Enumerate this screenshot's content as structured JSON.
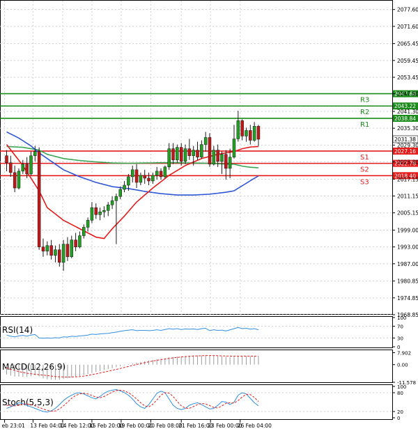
{
  "chart_data": {
    "type": "candlestick",
    "main": {
      "y_ticks": [
        "2077.60",
        "2071.60",
        "2065.45",
        "2059.45",
        "2053.45",
        "2047.60",
        "2041.30",
        "2035.30",
        "2029.30",
        "2023.30",
        "2017.15",
        "2011.15",
        "2005.15",
        "1999.00",
        "1993.00",
        "1987.00",
        "1980.85",
        "1974.85",
        "1968.85"
      ],
      "ylim": [
        1968.85,
        2080.0
      ],
      "price_label": "2031.38",
      "price_value": 2031.38,
      "levels": [
        {
          "name": "R3",
          "value": 2047.6,
          "label": "2047.60",
          "color": "#1a8a1a"
        },
        {
          "name": "R2",
          "value": 2043.22,
          "label": "2043.22",
          "color": "#1a8a1a"
        },
        {
          "name": "R1",
          "value": 2038.84,
          "label": "2038.84",
          "color": "#1a8a1a"
        },
        {
          "name": "S1",
          "value": 2027.16,
          "label": "2027.16",
          "color": "#e31b1b"
        },
        {
          "name": "S2",
          "value": 2022.78,
          "label": "2022.78",
          "color": "#e31b1b"
        },
        {
          "name": "S3",
          "value": 2018.4,
          "label": "2018.40",
          "color": "#e31b1b"
        }
      ],
      "candles": [
        [
          2025.5,
          2027.5,
          2020.0,
          2023.0
        ],
        [
          2023.0,
          2025.5,
          2018.0,
          2019.5
        ],
        [
          2019.5,
          2022.0,
          2012.5,
          2014.0
        ],
        [
          2014.0,
          2021.0,
          2013.5,
          2020.0
        ],
        [
          2020.0,
          2024.0,
          2019.0,
          2022.5
        ],
        [
          2022.5,
          2025.0,
          2017.5,
          2019.0
        ],
        [
          2019.0,
          2027.0,
          2018.5,
          2025.5
        ],
        [
          2025.5,
          2029.0,
          2023.5,
          2027.0
        ],
        [
          2027.0,
          2028.5,
          1992.0,
          1993.0
        ],
        [
          1993.0,
          1996.0,
          1989.5,
          1991.5
        ],
        [
          1991.5,
          1995.0,
          1990.0,
          1993.5
        ],
        [
          1993.5,
          1995.5,
          1988.5,
          1990.0
        ],
        [
          1990.0,
          1993.5,
          1987.5,
          1992.0
        ],
        [
          1992.0,
          1994.0,
          1986.0,
          1987.5
        ],
        [
          1987.5,
          1995.5,
          1984.5,
          1994.0
        ],
        [
          1994.0,
          1996.5,
          1988.0,
          1989.5
        ],
        [
          1989.5,
          1997.0,
          1989.0,
          1995.5
        ],
        [
          1995.5,
          1998.0,
          1991.5,
          1993.0
        ],
        [
          1993.0,
          1998.5,
          1992.5,
          1997.0
        ],
        [
          1997.0,
          2001.0,
          1996.0,
          2000.0
        ],
        [
          2000.0,
          2003.5,
          1998.5,
          2002.5
        ],
        [
          2002.5,
          2009.0,
          2001.5,
          2007.0
        ],
        [
          2007.0,
          2008.5,
          2003.0,
          2004.5
        ],
        [
          2004.5,
          2007.0,
          2002.5,
          2005.5
        ],
        [
          2005.5,
          2007.5,
          2003.5,
          2006.0
        ],
        [
          2006.0,
          2009.0,
          2004.0,
          2008.0
        ],
        [
          2008.0,
          2011.0,
          2006.5,
          2009.5
        ],
        [
          2009.5,
          2012.0,
          1994.0,
          2011.0
        ],
        [
          2011.0,
          2014.5,
          2010.0,
          2013.5
        ],
        [
          2013.5,
          2016.5,
          2012.5,
          2015.0
        ],
        [
          2015.0,
          2019.0,
          2013.0,
          2018.0
        ],
        [
          2018.0,
          2022.0,
          2016.0,
          2020.5
        ],
        [
          2020.5,
          2022.5,
          2014.0,
          2016.0
        ],
        [
          2016.0,
          2019.5,
          2015.0,
          2018.5
        ],
        [
          2018.5,
          2020.5,
          2015.5,
          2017.5
        ],
        [
          2017.5,
          2019.5,
          2015.0,
          2016.5
        ],
        [
          2016.5,
          2019.5,
          2015.5,
          2018.5
        ],
        [
          2018.5,
          2021.5,
          2017.0,
          2020.0
        ],
        [
          2020.0,
          2021.0,
          2017.0,
          2018.0
        ],
        [
          2018.0,
          2022.0,
          2017.5,
          2021.5
        ],
        [
          2021.5,
          2030.0,
          2020.5,
          2028.0
        ],
        [
          2028.0,
          2030.0,
          2022.5,
          2024.0
        ],
        [
          2024.0,
          2029.5,
          2023.0,
          2028.5
        ],
        [
          2028.5,
          2030.0,
          2022.0,
          2023.5
        ],
        [
          2023.5,
          2029.5,
          2022.5,
          2028.0
        ],
        [
          2028.0,
          2031.5,
          2024.0,
          2025.5
        ],
        [
          2025.5,
          2029.0,
          2022.0,
          2027.5
        ],
        [
          2027.5,
          2030.5,
          2024.0,
          2025.0
        ],
        [
          2025.0,
          2031.0,
          2024.5,
          2029.5
        ],
        [
          2029.5,
          2034.0,
          2027.0,
          2032.0
        ],
        [
          2032.0,
          2033.5,
          2021.5,
          2022.5
        ],
        [
          2022.5,
          2029.0,
          2022.0,
          2027.5
        ],
        [
          2027.5,
          2029.5,
          2021.5,
          2023.5
        ],
        [
          2023.5,
          2027.0,
          2019.0,
          2026.0
        ],
        [
          2026.0,
          2027.5,
          2017.0,
          2021.0
        ],
        [
          2021.0,
          2028.0,
          2017.5,
          2025.0
        ],
        [
          2025.0,
          2036.5,
          2024.5,
          2031.5
        ],
        [
          2031.5,
          2041.5,
          2030.5,
          2038.0
        ],
        [
          2038.0,
          2038.5,
          2031.0,
          2032.5
        ],
        [
          2032.5,
          2035.5,
          2030.5,
          2034.5
        ],
        [
          2034.5,
          2036.5,
          2029.5,
          2031.0
        ],
        [
          2031.0,
          2037.5,
          2030.5,
          2036.0
        ],
        [
          2036.0,
          2036.5,
          2029.0,
          2031.38
        ]
      ],
      "ma_red": [
        [
          0,
          2029.5
        ],
        [
          4,
          2022.0
        ],
        [
          8,
          2013.0
        ],
        [
          10,
          2007.0
        ],
        [
          14,
          2002.5
        ],
        [
          18,
          1999.5
        ],
        [
          22,
          1996.5
        ],
        [
          24,
          1996.0
        ],
        [
          26,
          1999.5
        ],
        [
          29,
          2004.0
        ],
        [
          32,
          2009.0
        ],
        [
          36,
          2014.0
        ],
        [
          40,
          2018.5
        ],
        [
          44,
          2022.0
        ],
        [
          48,
          2024.5
        ],
        [
          52,
          2026.0
        ],
        [
          56,
          2027.0
        ],
        [
          58,
          2028.0
        ],
        [
          60,
          2028.6
        ],
        [
          62,
          2028.8
        ]
      ],
      "ma_blue": [
        [
          0,
          2034.0
        ],
        [
          3,
          2031.8
        ],
        [
          6,
          2029.0
        ],
        [
          8,
          2026.5
        ],
        [
          11,
          2023.5
        ],
        [
          14,
          2020.5
        ],
        [
          18,
          2018.0
        ],
        [
          22,
          2016.0
        ],
        [
          26,
          2014.5
        ],
        [
          30,
          2013.8
        ],
        [
          34,
          2012.8
        ],
        [
          38,
          2012.0
        ],
        [
          42,
          2011.5
        ],
        [
          46,
          2011.5
        ],
        [
          50,
          2011.8
        ],
        [
          54,
          2012.5
        ],
        [
          56,
          2013.0
        ],
        [
          58,
          2014.8
        ],
        [
          60,
          2016.6
        ],
        [
          62,
          2018.3
        ]
      ],
      "ma_green": [
        [
          0,
          2028.8
        ],
        [
          4,
          2028.5
        ],
        [
          8,
          2027.5
        ],
        [
          10,
          2026.0
        ],
        [
          14,
          2024.5
        ],
        [
          18,
          2023.8
        ],
        [
          22,
          2023.3
        ],
        [
          26,
          2022.9
        ],
        [
          30,
          2022.8
        ],
        [
          34,
          2022.9
        ],
        [
          38,
          2023.0
        ],
        [
          42,
          2023.0
        ],
        [
          46,
          2022.9
        ],
        [
          50,
          2022.8
        ],
        [
          54,
          2022.5
        ],
        [
          56,
          2022.5
        ],
        [
          58,
          2021.8
        ],
        [
          60,
          2021.4
        ],
        [
          62,
          2021.2
        ]
      ]
    },
    "rsi": {
      "label": "RSI(14)",
      "y_ticks": [
        "100",
        "70",
        "30",
        "0"
      ],
      "values": [
        40,
        36,
        34,
        37,
        39,
        36,
        40,
        42,
        30,
        29,
        30,
        29,
        31,
        30,
        34,
        33,
        36,
        35,
        37,
        38,
        40,
        43,
        42,
        44,
        45,
        46,
        48,
        50,
        53,
        55,
        57,
        58,
        55,
        56,
        56,
        55,
        56,
        58,
        56,
        59,
        62,
        60,
        62,
        59,
        61,
        60,
        61,
        59,
        62,
        63,
        55,
        58,
        56,
        57,
        54,
        58,
        62,
        66,
        62,
        63,
        60,
        62,
        58
      ]
    },
    "macd": {
      "label": "MACD(12,26,9)",
      "y_ticks": [
        "7.902",
        "0.00",
        "-11.578"
      ],
      "ylim": [
        -11.578,
        9.5
      ],
      "hist": [
        -6.5,
        -7.2,
        -7.8,
        -7.9,
        -8.0,
        -8.0,
        -7.6,
        -7.0,
        -7.8,
        -9.0,
        -9.6,
        -9.8,
        -9.9,
        -9.8,
        -9.4,
        -9.0,
        -8.5,
        -8.0,
        -7.4,
        -6.8,
        -6.2,
        -5.5,
        -4.8,
        -4.2,
        -3.5,
        -2.9,
        -2.3,
        -1.6,
        -1.0,
        -0.4,
        0.3,
        0.9,
        1.3,
        1.8,
        2.3,
        2.7,
        3.2,
        3.6,
        3.9,
        4.3,
        4.8,
        5.1,
        5.4,
        5.5,
        5.7,
        5.9,
        6.0,
        6.0,
        6.1,
        6.2,
        5.9,
        5.8,
        5.6,
        5.5,
        5.2,
        5.0,
        5.2,
        5.6,
        5.6,
        5.7,
        5.5,
        5.5,
        5.2
      ],
      "signal": [
        -2.0,
        -3.0,
        -3.8,
        -4.5,
        -5.1,
        -5.6,
        -6.0,
        -6.3,
        -6.6,
        -6.9,
        -7.2,
        -7.5,
        -7.8,
        -8.0,
        -8.1,
        -8.2,
        -8.1,
        -8.0,
        -7.8,
        -7.5,
        -7.1,
        -6.6,
        -6.1,
        -5.5,
        -4.9,
        -4.3,
        -3.7,
        -3.1,
        -2.5,
        -1.8,
        -1.2,
        -0.5,
        0.1,
        0.7,
        1.3,
        1.9,
        2.4,
        2.9,
        3.3,
        3.7,
        4.1,
        4.5,
        4.8,
        5.1,
        5.3,
        5.5,
        5.7,
        5.8,
        5.9,
        6.0,
        6.0,
        6.0,
        5.9,
        5.8,
        5.7,
        5.6,
        5.6,
        5.6,
        5.6,
        5.6,
        5.6,
        5.6,
        5.5
      ]
    },
    "stoch": {
      "label": "Stoch(5,5,3)",
      "y_ticks": [
        "100",
        "80",
        "20",
        "0"
      ],
      "k": [
        30,
        35,
        40,
        48,
        45,
        40,
        35,
        30,
        25,
        20,
        18,
        22,
        30,
        42,
        55,
        65,
        72,
        78,
        80,
        76,
        70,
        64,
        60,
        68,
        78,
        85,
        88,
        90,
        86,
        80,
        72,
        60,
        45,
        35,
        30,
        42,
        60,
        78,
        85,
        80,
        60,
        40,
        30,
        26,
        30,
        40,
        45,
        48,
        42,
        35,
        28,
        30,
        40,
        52,
        50,
        42,
        50,
        72,
        80,
        76,
        62,
        48,
        38
      ],
      "d": [
        40,
        38,
        38,
        40,
        43,
        44,
        42,
        38,
        33,
        28,
        24,
        21,
        22,
        28,
        38,
        50,
        62,
        71,
        76,
        78,
        76,
        71,
        66,
        64,
        68,
        75,
        82,
        87,
        88,
        86,
        80,
        71,
        60,
        48,
        38,
        35,
        43,
        57,
        72,
        80,
        79,
        68,
        52,
        38,
        31,
        30,
        36,
        42,
        46,
        44,
        39,
        33,
        31,
        38,
        46,
        48,
        47,
        55,
        66,
        75,
        74,
        65,
        52
      ]
    },
    "x_labels": [
      {
        "text": "eb 23:01",
        "idx": -0.5
      },
      {
        "text": "13 Feb 04:00",
        "idx": 6.5
      },
      {
        "text": "14 Feb 12:00",
        "idx": 13.8
      },
      {
        "text": "15 Feb 20:00",
        "idx": 21.0
      },
      {
        "text": "19 Feb 00:00",
        "idx": 28.2
      },
      {
        "text": "20 Feb 08:00",
        "idx": 35.5
      },
      {
        "text": "21 Feb 16:00",
        "idx": 43.0
      },
      {
        "text": "23 Feb 00:00",
        "idx": 50.2
      },
      {
        "text": "26 Feb 04:00",
        "idx": 57.5
      }
    ],
    "colors": {
      "bull": "#22a022",
      "bear": "#c01818",
      "outline": "#1a1a1a",
      "ma_red": "#e31b1b",
      "ma_blue": "#2f56d6",
      "ma_green": "#3aa655",
      "rsi": "#2f8fe0",
      "macd_hist": "#9a9a9a",
      "macd_signal": "#e31b1b",
      "stoch_k": "#2f8fe0",
      "stoch_d": "#e31b1b",
      "grid": "#cfcfcf",
      "axis": "#000000",
      "label_bg": "#1a1a1a"
    }
  }
}
